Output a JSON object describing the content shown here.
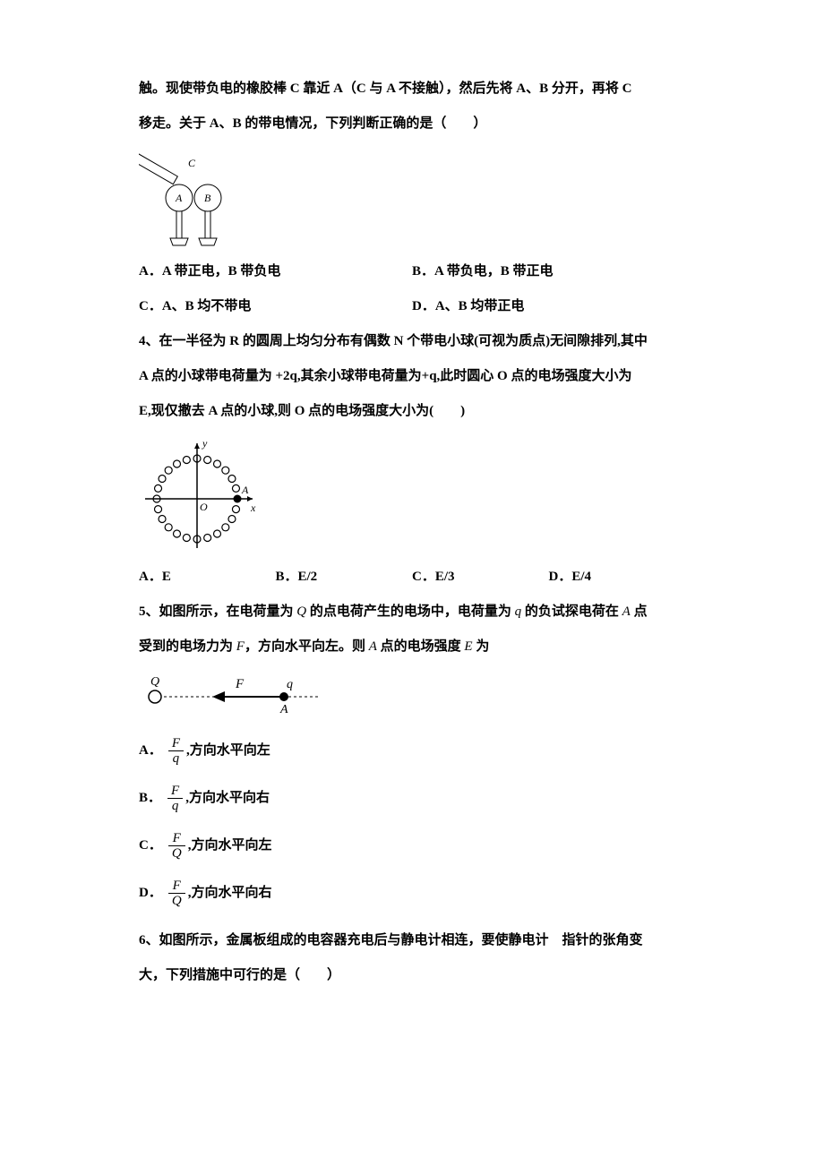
{
  "q3": {
    "cont1": "触。现使带负电的橡胶棒 C 靠近 A（C 与 A 不接触），然后先将 A、B 分开，再将 C",
    "cont2": "移走。关于 A、B 的带电情况，下列判断正确的是（　　）",
    "optA": "A．A 带正电，B 带负电",
    "optB": "B．A 带负电，B 带正电",
    "optC": "C．A、B 均不带电",
    "optD": "D．A、B 均带正电"
  },
  "q4": {
    "stem1": "4、在一半径为 R 的圆周上均匀分布有偶数 N 个带电小球(可视为质点)无间隙排列,其中",
    "stem2": "A 点的小球带电荷量为 +2q,其余小球带电荷量为+q,此时圆心 O 点的电场强度大小为",
    "stem3": "E,现仅撤去 A 点的小球,则 O 点的电场强度大小为(　　)",
    "optA": "A．E",
    "optB": "B．E/2",
    "optC": "C．E/3",
    "optD": "D．E/4"
  },
  "q5": {
    "stem1": "5、如图所示，在电荷量为 Q 的点电荷产生的电场中，电荷量为 q 的负试探电荷在 A 点",
    "stem2": "受到的电场力为 F，方向水平向左。则 A 点的电场强度 E 为",
    "optA_lbl": "A．",
    "optA_num": "F",
    "optA_den": "q",
    "optA_txt": " ,方向水平向左",
    "optB_lbl": "B．",
    "optB_num": "F",
    "optB_den": "q",
    "optB_txt": " ,方向水平向右",
    "optC_lbl": "C．",
    "optC_num": "F",
    "optC_den": "Q",
    "optC_txt": " ,方向水平向左",
    "optD_lbl": "D．",
    "optD_num": "F",
    "optD_den": "Q",
    "optD_txt": " ,方向水平向右"
  },
  "q6": {
    "stem1": "6、如图所示，金属板组成的电容器充电后与静电计相连，要使静电计　指针的张角变",
    "stem2": "大，下列措施中可行的是（　　）"
  },
  "figs": {
    "q3_labelA": "A",
    "q3_labelB": "B",
    "q3_labelC": "C",
    "q4_labelA": "A",
    "q4_labelO": "O",
    "q4_labelX": "x",
    "q4_labelY": "y",
    "q5_labelQ": "Q",
    "q5_labelF": "F",
    "q5_labelq": "q",
    "q5_labelA": "A"
  },
  "colors": {
    "text": "#000000",
    "bg": "#ffffff",
    "stroke": "#000000"
  }
}
